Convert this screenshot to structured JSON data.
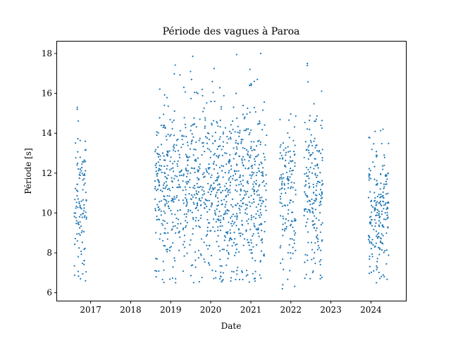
{
  "chart_data": {
    "type": "scatter",
    "title": "Période des vagues à Paroa",
    "xlabel": "Date",
    "ylabel": "Période [s]",
    "xlim": [
      "2016-03-01",
      "2024-11-15"
    ],
    "ylim": [
      5.6,
      18.6
    ],
    "x_ticks": [
      "2017",
      "2018",
      "2019",
      "2020",
      "2021",
      "2022",
      "2023",
      "2024"
    ],
    "y_ticks": [
      "6",
      "8",
      "10",
      "12",
      "14",
      "16",
      "18"
    ],
    "grid": false,
    "marker_color": "#1f77b4",
    "clusters": [
      {
        "start": "2016-08-05",
        "end": "2016-11-25",
        "count": 110,
        "mean": 10.6,
        "sd": 2.0,
        "min": 6.6,
        "max": 15.4
      },
      {
        "start": "2018-08-10",
        "end": "2021-05-25",
        "count": 1050,
        "mean": 11.1,
        "sd": 2.2,
        "min": 6.5,
        "max": 18.0
      },
      {
        "start": "2021-09-20",
        "end": "2022-02-15",
        "count": 140,
        "mean": 10.9,
        "sd": 2.0,
        "min": 6.2,
        "max": 15.0
      },
      {
        "start": "2022-05-01",
        "end": "2022-10-20",
        "count": 190,
        "mean": 11.1,
        "sd": 2.1,
        "min": 6.6,
        "max": 17.5
      },
      {
        "start": "2023-12-10",
        "end": "2024-06-10",
        "count": 200,
        "mean": 9.9,
        "sd": 1.8,
        "min": 6.5,
        "max": 14.2
      }
    ],
    "points": [
      {
        "x": "2016-09-01",
        "y": 15.3
      },
      {
        "x": "2016-09-01",
        "y": 15.2
      },
      {
        "x": "2016-11-15",
        "y": 6.6
      },
      {
        "x": "2016-10-01",
        "y": 6.7
      },
      {
        "x": "2019-02-15",
        "y": 6.5
      },
      {
        "x": "2019-02-15",
        "y": 6.7
      },
      {
        "x": "2019-07-01",
        "y": 17.1
      },
      {
        "x": "2019-05-01",
        "y": 16.3
      },
      {
        "x": "2019-10-15",
        "y": 16.2
      },
      {
        "x": "2020-04-15",
        "y": 6.6
      },
      {
        "x": "2020-08-20",
        "y": 16.0
      },
      {
        "x": "2020-12-20",
        "y": 16.4
      },
      {
        "x": "2021-02-01",
        "y": 16.6
      },
      {
        "x": "2021-03-01",
        "y": 16.7
      },
      {
        "x": "2021-04-01",
        "y": 18.0
      },
      {
        "x": "2021-02-01",
        "y": 6.7
      },
      {
        "x": "2021-10-15",
        "y": 6.2
      },
      {
        "x": "2021-10-20",
        "y": 6.4
      },
      {
        "x": "2022-06-01",
        "y": 17.5
      },
      {
        "x": "2022-06-01",
        "y": 17.4
      },
      {
        "x": "2024-02-20",
        "y": 6.5
      },
      {
        "x": "2024-04-20",
        "y": 14.2
      }
    ]
  }
}
